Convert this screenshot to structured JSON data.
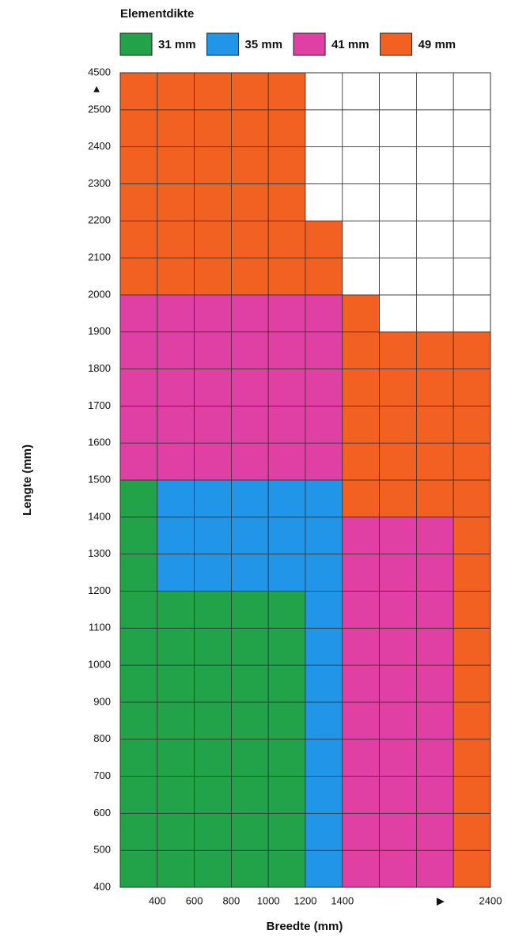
{
  "chart_data": {
    "type": "heatmap",
    "title": "Elementdikte",
    "legend": [
      {
        "value": 31,
        "label": "31 mm",
        "color": "#22a34a"
      },
      {
        "value": 35,
        "label": "35 mm",
        "color": "#2196e8"
      },
      {
        "value": 41,
        "label": "41 mm",
        "color": "#e040a4"
      },
      {
        "value": 49,
        "label": "49 mm",
        "color": "#f26122"
      }
    ],
    "x_label": "Breedte (mm)",
    "y_label": "Lengte (mm)",
    "x_edges": [
      null,
      400,
      600,
      800,
      1000,
      1200,
      1400,
      null,
      null,
      null,
      2400
    ],
    "y_edges": [
      400,
      500,
      600,
      700,
      800,
      900,
      1000,
      1100,
      1200,
      1300,
      1400,
      1500,
      1600,
      1700,
      1800,
      1900,
      2000,
      2100,
      2200,
      2300,
      2400,
      2500,
      4500
    ],
    "x_arrow": "▶",
    "y_arrow": "▲",
    "cells": [
      [
        31,
        31,
        31,
        31,
        31,
        35,
        41,
        41,
        41,
        49
      ],
      [
        31,
        31,
        31,
        31,
        31,
        35,
        41,
        41,
        41,
        49
      ],
      [
        31,
        31,
        31,
        31,
        31,
        35,
        41,
        41,
        41,
        49
      ],
      [
        31,
        31,
        31,
        31,
        31,
        35,
        41,
        41,
        41,
        49
      ],
      [
        31,
        31,
        31,
        31,
        31,
        35,
        41,
        41,
        41,
        49
      ],
      [
        31,
        31,
        31,
        31,
        31,
        35,
        41,
        41,
        41,
        49
      ],
      [
        31,
        31,
        31,
        31,
        31,
        35,
        41,
        41,
        41,
        49
      ],
      [
        31,
        31,
        31,
        31,
        31,
        35,
        41,
        41,
        41,
        49
      ],
      [
        31,
        35,
        35,
        35,
        35,
        35,
        41,
        41,
        41,
        49
      ],
      [
        31,
        35,
        35,
        35,
        35,
        35,
        41,
        41,
        41,
        49
      ],
      [
        31,
        35,
        35,
        35,
        35,
        35,
        49,
        49,
        49,
        49
      ],
      [
        41,
        41,
        41,
        41,
        41,
        41,
        49,
        49,
        49,
        49
      ],
      [
        41,
        41,
        41,
        41,
        41,
        41,
        49,
        49,
        49,
        49
      ],
      [
        41,
        41,
        41,
        41,
        41,
        41,
        49,
        49,
        49,
        49
      ],
      [
        41,
        41,
        41,
        41,
        41,
        41,
        49,
        49,
        49,
        49
      ],
      [
        41,
        41,
        41,
        41,
        41,
        41,
        49,
        null,
        null,
        null
      ],
      [
        49,
        49,
        49,
        49,
        49,
        49,
        null,
        null,
        null,
        null
      ],
      [
        49,
        49,
        49,
        49,
        49,
        49,
        null,
        null,
        null,
        null
      ],
      [
        49,
        49,
        49,
        49,
        49,
        null,
        null,
        null,
        null,
        null
      ],
      [
        49,
        49,
        49,
        49,
        49,
        null,
        null,
        null,
        null,
        null
      ],
      [
        49,
        49,
        49,
        49,
        49,
        null,
        null,
        null,
        null,
        null
      ],
      [
        49,
        49,
        49,
        49,
        49,
        null,
        null,
        null,
        null,
        null
      ]
    ]
  }
}
